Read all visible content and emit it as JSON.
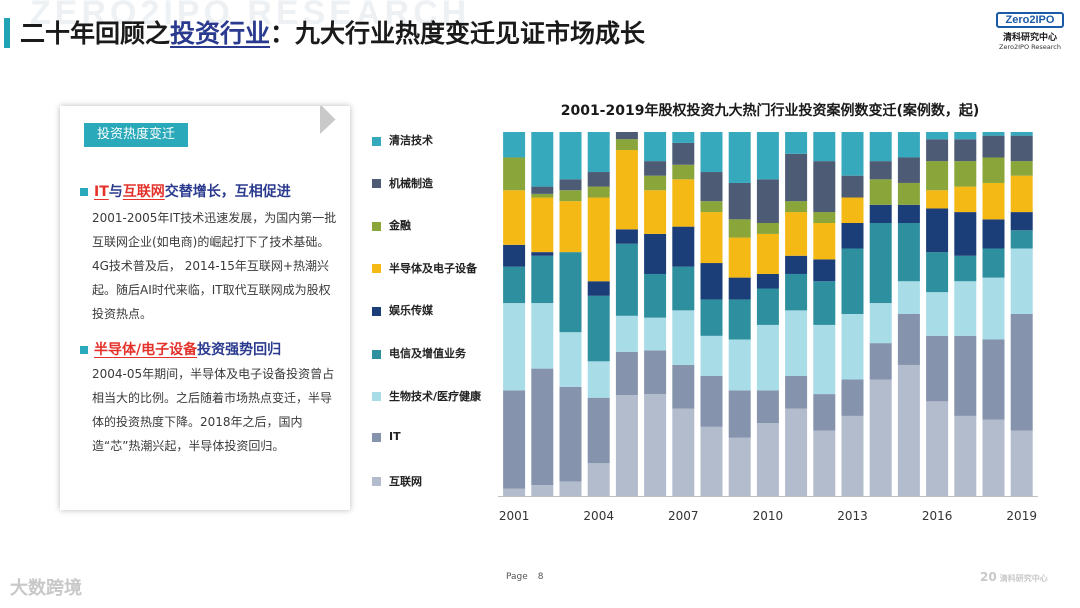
{
  "watermark_top": "ZERO2IPO RESEARCH",
  "title": {
    "prefix": "二十年回顾之",
    "underlined": "投资行业",
    "suffix": "：九大行业热度变迁见证市场成长"
  },
  "logo": {
    "mark": "Zero2IPO",
    "cn": "清科研究中心",
    "en": "Zero2IPO Research"
  },
  "card": {
    "tag": "投资热度变迁",
    "sections": [
      {
        "heading_red_1": "IT",
        "heading_mid": "与",
        "heading_red_2": "互联网",
        "heading_rest": "交替增长，互相促进",
        "text": "2001-2005年IT技术迅速发展，为国内第一批互联网企业(如电商)的崛起打下了技术基础。4G技术普及后， 2014-15年互联网+热潮兴起。随后AI时代来临，IT取代互联网成为股权投资热点。"
      },
      {
        "heading_red": "半导体/电子设备",
        "heading_rest": "投资强势回归",
        "text": "2004-05年期间，半导体及电子设备投资曾占相当大的比例。之后随着市场热点变迁，半导体的投资热度下降。2018年之后，国内造“芯”热潮兴起，半导体投资回归。"
      }
    ]
  },
  "footer": {
    "page_label": "Page",
    "page_number": "8",
    "watermark_left": "大数跨境",
    "watermark_right": "20",
    "watermark_right_text": "清科研究中心"
  },
  "chart_data": {
    "type": "bar",
    "stacked": true,
    "normalized_percent": true,
    "title": "2001-2019年股权投资九大热门行业投资案例数变迁(案例数，起)",
    "categories": [
      "2001",
      "2002",
      "2003",
      "2004",
      "2005",
      "2006",
      "2007",
      "2008",
      "2009",
      "2010",
      "2011",
      "2012",
      "2013",
      "2014",
      "2015",
      "2016",
      "2017",
      "2018",
      "2019"
    ],
    "x_tick_labels": [
      "2001",
      "2004",
      "2007",
      "2010",
      "2013",
      "2016",
      "2019"
    ],
    "series": [
      {
        "name": "互联网",
        "color": "#b3bccd",
        "values": [
          2,
          3,
          4,
          9,
          28,
          28,
          24,
          19,
          16,
          20,
          24,
          18,
          22,
          32,
          36,
          26,
          22,
          21,
          18
        ]
      },
      {
        "name": "IT",
        "color": "#8593ac",
        "values": [
          27,
          32,
          26,
          18,
          12,
          12,
          12,
          14,
          13,
          9,
          9,
          10,
          10,
          10,
          14,
          18,
          22,
          22,
          32
        ]
      },
      {
        "name": "生物技术/医疗健康",
        "color": "#a8dce7",
        "values": [
          24,
          18,
          15,
          10,
          10,
          9,
          15,
          11,
          14,
          18,
          18,
          19,
          18,
          11,
          9,
          12,
          15,
          17,
          18
        ]
      },
      {
        "name": "电信及增值业务",
        "color": "#2e8f9f",
        "values": [
          10,
          13,
          22,
          18,
          20,
          12,
          12,
          10,
          11,
          10,
          10,
          12,
          18,
          22,
          16,
          11,
          7,
          8,
          5
        ]
      },
      {
        "name": "娱乐传媒",
        "color": "#1b3d78",
        "values": [
          6,
          1,
          0,
          4,
          4,
          11,
          11,
          10,
          6,
          4,
          5,
          6,
          7,
          5,
          5,
          12,
          12,
          8,
          5
        ]
      },
      {
        "name": "半导体及电子设备",
        "color": "#f5b915",
        "values": [
          15,
          15,
          14,
          23,
          22,
          12,
          13,
          14,
          11,
          11,
          12,
          10,
          7,
          0,
          0,
          5,
          7,
          10,
          10
        ]
      },
      {
        "name": "金融",
        "color": "#8aa53a",
        "values": [
          9,
          1,
          3,
          3,
          3,
          4,
          4,
          3,
          5,
          3,
          3,
          3,
          0,
          7,
          6,
          8,
          7,
          7,
          4
        ]
      },
      {
        "name": "机械制造",
        "color": "#4d5b74",
        "values": [
          0,
          2,
          3,
          4,
          2,
          4,
          6,
          8,
          10,
          12,
          13,
          14,
          6,
          5,
          7,
          6,
          6,
          6,
          7
        ]
      },
      {
        "name": "清洁技术",
        "color": "#36a9bd",
        "values": [
          7,
          15,
          13,
          11,
          0,
          8,
          3,
          11,
          14,
          13,
          6,
          8,
          12,
          8,
          7,
          2,
          2,
          1,
          1
        ]
      }
    ],
    "legend_order": [
      "清洁技术",
      "机械制造",
      "金融",
      "半导体及电子设备",
      "娱乐传媒",
      "电信及增值业务",
      "生物技术/医疗健康",
      "IT",
      "互联网"
    ],
    "ylim": [
      0,
      100
    ],
    "ylabel": "",
    "xlabel": ""
  }
}
